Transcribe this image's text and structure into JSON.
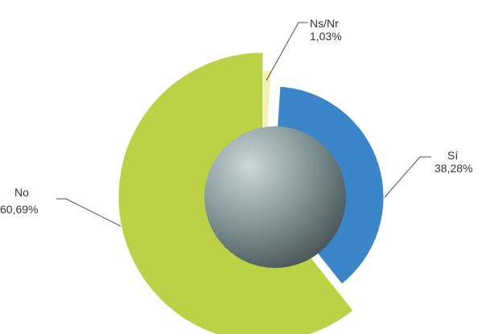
{
  "chart_data": {
    "type": "pie",
    "title": "",
    "legend": "none",
    "slices": [
      {
        "name": "Ns/Nr",
        "value": 1.03,
        "label": "1,03%",
        "color": "#f3f0b0"
      },
      {
        "name": "Sí",
        "value": 38.28,
        "label": "38,28%",
        "color": "#3a86c8"
      },
      {
        "name": "No",
        "value": 60.69,
        "label": "60,69%",
        "color": "#bcd246"
      }
    ]
  }
}
